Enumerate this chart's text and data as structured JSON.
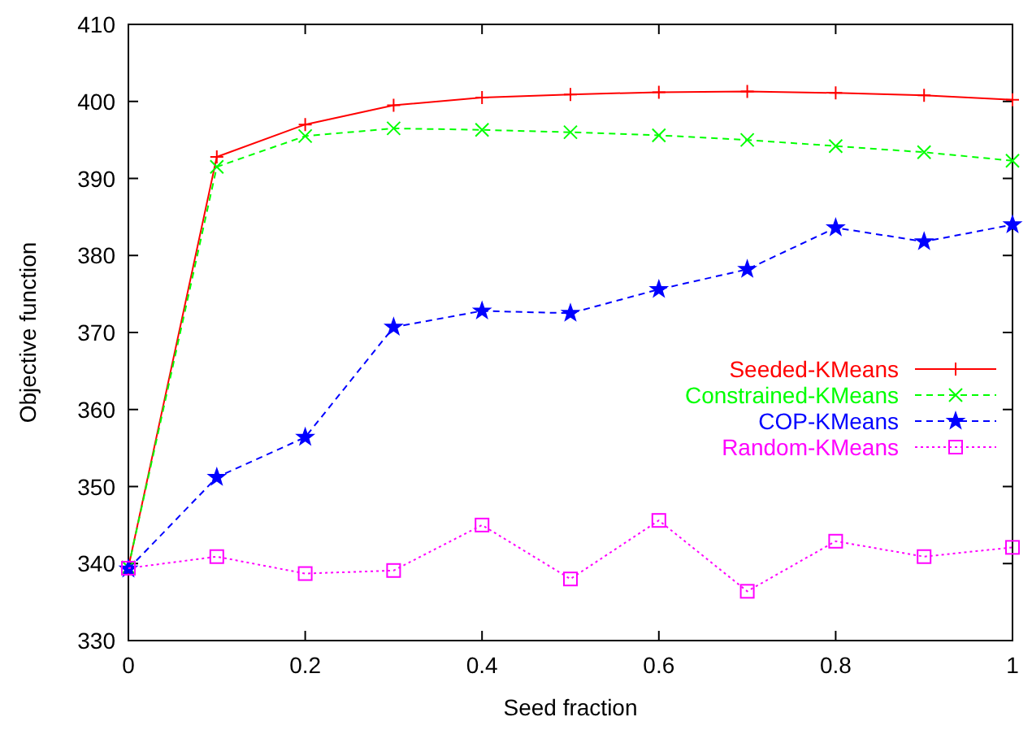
{
  "chart_data": {
    "type": "line",
    "xlabel": "Seed fraction",
    "ylabel": "Objective function",
    "x": [
      0,
      0.1,
      0.2,
      0.3,
      0.4,
      0.5,
      0.6,
      0.7,
      0.8,
      0.9,
      1
    ],
    "xlim": [
      0,
      1
    ],
    "xticks": [
      0,
      0.2,
      0.4,
      0.6,
      0.8,
      1
    ],
    "ylim": [
      330,
      410
    ],
    "yticks": [
      330,
      340,
      350,
      360,
      370,
      380,
      390,
      400,
      410
    ],
    "grid": false,
    "legend": "right",
    "series": [
      {
        "name": "Seeded-KMeans",
        "color": "#ff0000",
        "marker": "cross",
        "line_style": "solid",
        "values": [
          339.5,
          392.8,
          397,
          399.5,
          400.5,
          400.9,
          401.2,
          401.3,
          401.1,
          400.8,
          400.2
        ]
      },
      {
        "name": "Constrained-KMeans",
        "color": "#00ff00",
        "marker": "x",
        "line_style": "dashed",
        "values": [
          339.5,
          391.5,
          395.5,
          396.5,
          396.3,
          396,
          395.6,
          395,
          394.2,
          393.4,
          392.3
        ]
      },
      {
        "name": "COP-KMeans",
        "color": "#0000ff",
        "marker": "star",
        "line_style": "dashed",
        "values": [
          339.3,
          351.2,
          356.4,
          370.7,
          372.8,
          372.5,
          375.6,
          378.2,
          383.6,
          381.8,
          384
        ]
      },
      {
        "name": "Random-KMeans",
        "color": "#ff00ff",
        "marker": "square",
        "line_style": "dotted",
        "values": [
          339.4,
          340.9,
          338.7,
          339.1,
          345,
          338,
          345.6,
          336.4,
          342.9,
          340.9,
          342.1
        ]
      }
    ]
  }
}
